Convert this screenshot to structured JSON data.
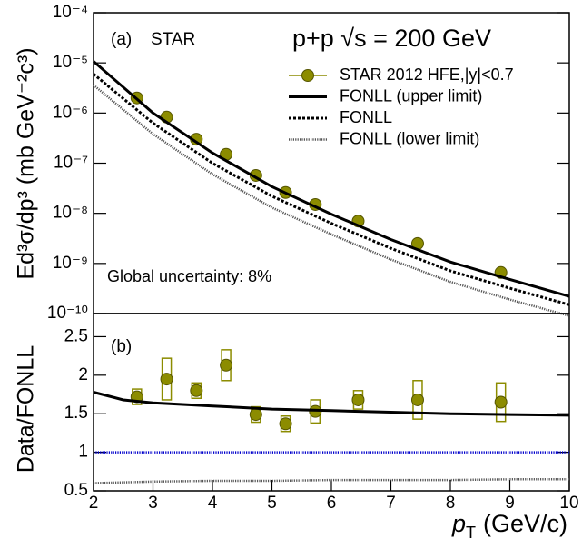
{
  "chart_data": [
    {
      "type": "line",
      "log_y": true,
      "panel_label": "(a)",
      "experiment": "STAR",
      "title": "p+p √s = 200 GeV",
      "annotation": "Global uncertainty: 8%",
      "y_label": "Ed³σ/dp³ (mb GeV⁻²c³)",
      "ylim": [
        1e-10,
        0.0001
      ],
      "yticks": [
        {
          "value": 1e-10,
          "label": "10⁻¹⁰"
        },
        {
          "value": 1e-09,
          "label": "10⁻⁹"
        },
        {
          "value": 1e-08,
          "label": "10⁻⁸"
        },
        {
          "value": 1e-07,
          "label": "10⁻⁷"
        },
        {
          "value": 1e-06,
          "label": "10⁻⁶"
        },
        {
          "value": 1e-05,
          "label": "10⁻⁵"
        },
        {
          "value": 0.0001,
          "label": "10⁻⁴"
        }
      ],
      "xlim": [
        2,
        10
      ],
      "series": [
        {
          "name": "STAR 2012 HFE,|y|<0.7",
          "color": "#8c8c00",
          "style": "marker",
          "x": [
            2.73,
            3.23,
            3.73,
            4.23,
            4.73,
            5.23,
            5.73,
            6.45,
            7.45,
            8.85
          ],
          "values": [
            2e-06,
            8.3e-07,
            3e-07,
            1.5e-07,
            5.7e-08,
            2.6e-08,
            1.5e-08,
            7e-09,
            2.5e-09,
            6.6e-10
          ]
        },
        {
          "name": "FONLL (upper limit)",
          "color": "#000000",
          "style": "solid",
          "x": [
            2,
            3,
            4,
            5,
            6,
            7,
            8,
            9,
            10
          ],
          "values": [
            1.07e-05,
            1e-06,
            1.6e-07,
            3.4e-08,
            9.6e-09,
            3e-09,
            1.07e-09,
            4.8e-10,
            2.2e-10
          ]
        },
        {
          "name": "FONLL",
          "color": "#000000",
          "style": "dashed",
          "x": [
            2,
            3,
            4,
            5,
            6,
            7,
            8,
            9,
            10
          ],
          "values": [
            6e-06,
            6.3e-07,
            1e-07,
            2.2e-08,
            6.3e-09,
            2e-09,
            7.1e-10,
            3.2e-10,
            1.5e-10
          ]
        },
        {
          "name": "FONLL (lower limit)",
          "color": "#555555",
          "style": "dotted",
          "x": [
            2,
            3,
            4,
            5,
            6,
            7,
            8,
            9,
            10
          ],
          "values": [
            3.6e-06,
            3.8e-07,
            6e-08,
            1.3e-08,
            3.8e-09,
            1.2e-09,
            4.3e-10,
            1.9e-10,
            9e-11
          ]
        }
      ]
    },
    {
      "type": "line",
      "panel_label": "(b)",
      "y_label": "Data/FONLL",
      "x_label": {
        "symbol": "p",
        "subscript": "T",
        "unit": "(GeV/c)"
      },
      "ylim": [
        0.5,
        2.8
      ],
      "yticks": [
        0.5,
        1,
        1.5,
        2,
        2.5
      ],
      "xlim": [
        2,
        10
      ],
      "xticks": [
        2,
        3,
        4,
        5,
        6,
        7,
        8,
        9,
        10
      ],
      "series": [
        {
          "color": "#8c8c00",
          "style": "marker",
          "x": [
            2.73,
            3.23,
            3.73,
            4.23,
            4.73,
            5.23,
            5.73,
            6.45,
            7.45,
            8.85
          ],
          "values": [
            1.72,
            1.95,
            1.8,
            2.13,
            1.49,
            1.37,
            1.53,
            1.68,
            1.68,
            1.65
          ],
          "errors": [
            0.1,
            0.27,
            0.1,
            0.2,
            0.1,
            0.1,
            0.15,
            0.12,
            0.25,
            0.25
          ]
        },
        {
          "color": "#000000",
          "style": "solid",
          "x": [
            2,
            2.5,
            3,
            4,
            5,
            6,
            7,
            8,
            9,
            10
          ],
          "values": [
            1.78,
            1.68,
            1.64,
            1.6,
            1.56,
            1.54,
            1.52,
            1.5,
            1.49,
            1.48
          ]
        },
        {
          "color": "#0000cc",
          "style": "dotted",
          "x": [
            2,
            10
          ],
          "values": [
            1,
            1
          ]
        },
        {
          "color": "#555555",
          "style": "dotted",
          "x": [
            2,
            3,
            4,
            5,
            6,
            7,
            8,
            9,
            10
          ],
          "values": [
            0.6,
            0.62,
            0.63,
            0.63,
            0.64,
            0.64,
            0.64,
            0.65,
            0.65
          ]
        }
      ]
    }
  ]
}
